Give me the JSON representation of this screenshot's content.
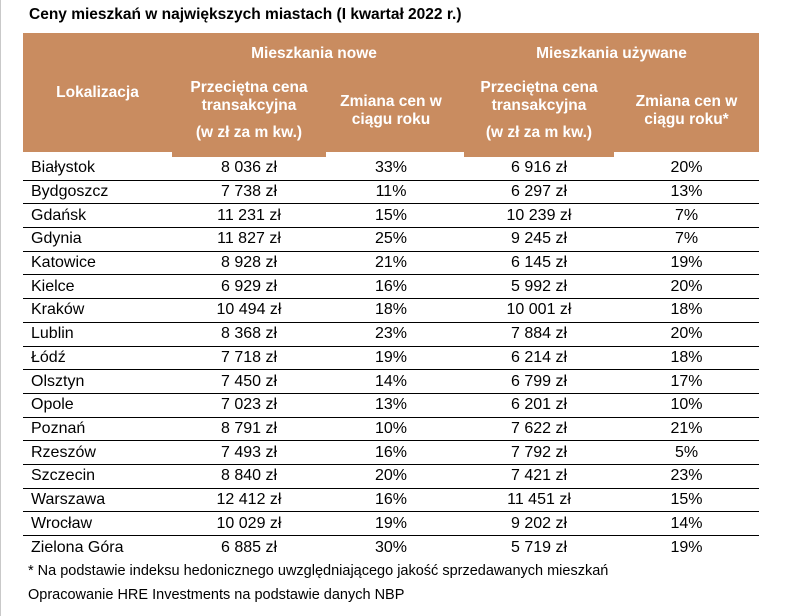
{
  "title": "Ceny mieszkań w największych miastach (I kwartał 2022 r.)",
  "colors": {
    "header_bg": "#C98C60",
    "header_text": "#FFFFFF",
    "row_separator": "#000000",
    "body_text": "#000000"
  },
  "header": {
    "location": "Lokalizacja",
    "group_new": "Mieszkania nowe",
    "group_used": "Mieszkania używane",
    "price_label_line1": "Przeciętna cena",
    "price_label_line2": "transakcyjna",
    "price_unit": "(w zł za m kw.)",
    "change_label_line1": "Zmiana cen w",
    "change_label_new_line2": "ciągu roku",
    "change_label_used_line2": "ciągu roku*"
  },
  "chart_data": {
    "type": "table",
    "title": "Ceny mieszkań w największych miastach (I kwartał 2022 r.)",
    "column_groups": [
      "Mieszkania nowe",
      "Mieszkania używane"
    ],
    "columns": [
      "Lokalizacja",
      "Przeciętna cena transakcyjna (w zł za m kw.)",
      "Zmiana cen w ciągu roku",
      "Przeciętna cena transakcyjna (w zł za m kw.)",
      "Zmiana cen w ciągu roku*"
    ],
    "rows": [
      {
        "city": "Białystok",
        "new_price": "8 036 zł",
        "new_change": "33%",
        "used_price": "6 916 zł",
        "used_change": "20%"
      },
      {
        "city": "Bydgoszcz",
        "new_price": "7 738 zł",
        "new_change": "11%",
        "used_price": "6 297 zł",
        "used_change": "13%"
      },
      {
        "city": "Gdańsk",
        "new_price": "11 231 zł",
        "new_change": "15%",
        "used_price": "10 239 zł",
        "used_change": "7%"
      },
      {
        "city": "Gdynia",
        "new_price": "11 827 zł",
        "new_change": "25%",
        "used_price": "9 245 zł",
        "used_change": "7%"
      },
      {
        "city": "Katowice",
        "new_price": "8 928 zł",
        "new_change": "21%",
        "used_price": "6 145 zł",
        "used_change": "19%"
      },
      {
        "city": "Kielce",
        "new_price": "6 929 zł",
        "new_change": "16%",
        "used_price": "5 992 zł",
        "used_change": "20%"
      },
      {
        "city": "Kraków",
        "new_price": "10 494 zł",
        "new_change": "18%",
        "used_price": "10 001 zł",
        "used_change": "18%"
      },
      {
        "city": "Lublin",
        "new_price": "8 368 zł",
        "new_change": "23%",
        "used_price": "7 884 zł",
        "used_change": "20%"
      },
      {
        "city": "Łódź",
        "new_price": "7 718 zł",
        "new_change": "19%",
        "used_price": "6 214 zł",
        "used_change": "18%"
      },
      {
        "city": "Olsztyn",
        "new_price": "7 450 zł",
        "new_change": "14%",
        "used_price": "6 799 zł",
        "used_change": "17%"
      },
      {
        "city": "Opole",
        "new_price": "7 023 zł",
        "new_change": "13%",
        "used_price": "6 201 zł",
        "used_change": "10%"
      },
      {
        "city": "Poznań",
        "new_price": "8 791 zł",
        "new_change": "10%",
        "used_price": "7 622 zł",
        "used_change": "21%"
      },
      {
        "city": "Rzeszów",
        "new_price": "7 493 zł",
        "new_change": "16%",
        "used_price": "7 792 zł",
        "used_change": "5%"
      },
      {
        "city": "Szczecin",
        "new_price": "8 840 zł",
        "new_change": "20%",
        "used_price": "7 421 zł",
        "used_change": "23%"
      },
      {
        "city": "Warszawa",
        "new_price": "12 412 zł",
        "new_change": "16%",
        "used_price": "11 451 zł",
        "used_change": "15%"
      },
      {
        "city": "Wrocław",
        "new_price": "10 029 zł",
        "new_change": "19%",
        "used_price": "9 202 zł",
        "used_change": "14%"
      },
      {
        "city": "Zielona Góra",
        "new_price": "6 885 zł",
        "new_change": "30%",
        "used_price": "5 719 zł",
        "used_change": "19%"
      }
    ]
  },
  "footnotes": [
    "* Na podstawie indeksu hedonicznego uwzględniającego jakość sprzedawanych mieszkań",
    "Opracowanie HRE Investments na podstawie danych NBP"
  ]
}
